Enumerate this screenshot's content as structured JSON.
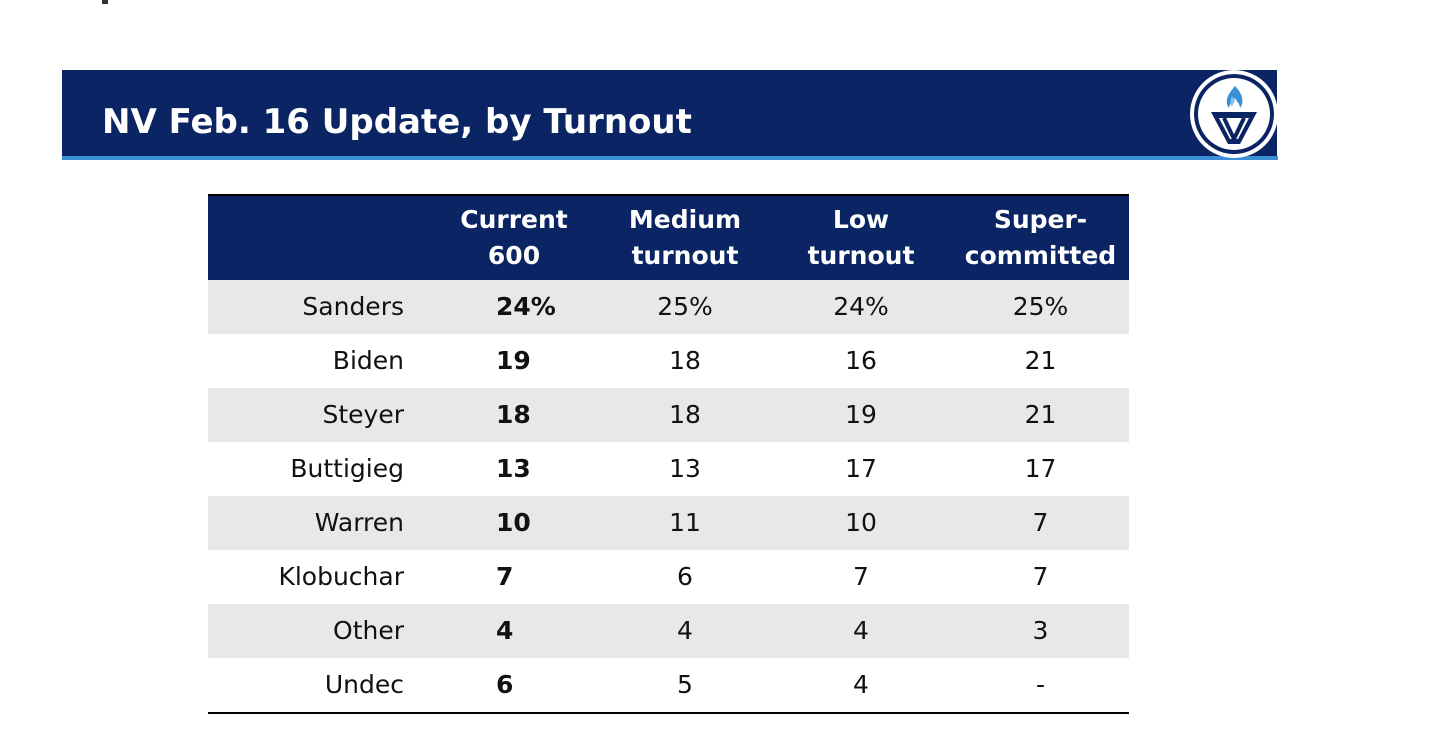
{
  "slide": {
    "title": "NV Feb. 16 Update, by Turnout",
    "logo_icon": "torch-logo-icon"
  },
  "colors": {
    "header_navy": "#0b2463",
    "accent_blue": "#3a8fd6",
    "stripe_gray": "#e8e8e8"
  },
  "table": {
    "headers": [
      "",
      "Current\n600",
      "Medium\nturnout",
      "Low\nturnout",
      "Super-\ncommitted"
    ],
    "rows": [
      {
        "name": "Sanders",
        "current": "24%",
        "medium": "25%",
        "low": "24%",
        "super": "25%"
      },
      {
        "name": "Biden",
        "current": "19",
        "medium": "18",
        "low": "16",
        "super": "21"
      },
      {
        "name": "Steyer",
        "current": "18",
        "medium": "18",
        "low": "19",
        "super": "21"
      },
      {
        "name": "Buttigieg",
        "current": "13",
        "medium": "13",
        "low": "17",
        "super": "17"
      },
      {
        "name": "Warren",
        "current": "10",
        "medium": "11",
        "low": "10",
        "super": "7"
      },
      {
        "name": "Klobuchar",
        "current": "7",
        "medium": "6",
        "low": "7",
        "super": "7"
      },
      {
        "name": "Other",
        "current": "4",
        "medium": "4",
        "low": "4",
        "super": "3"
      },
      {
        "name": "Undec",
        "current": "6",
        "medium": "5",
        "low": "4",
        "super": "-"
      }
    ]
  }
}
